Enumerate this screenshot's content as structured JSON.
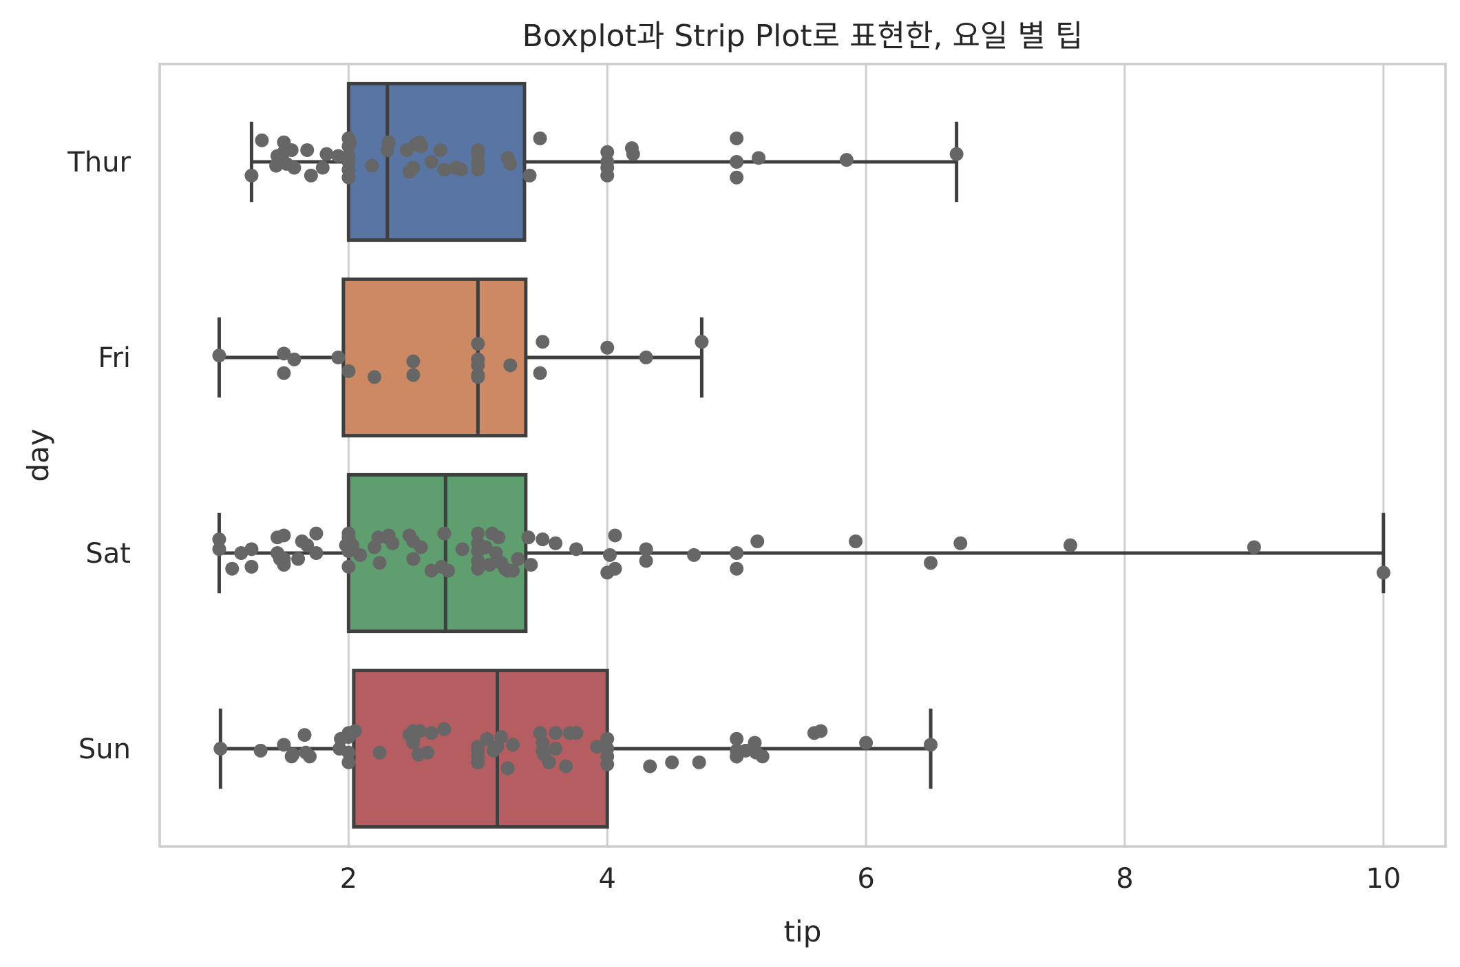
{
  "chart_data": {
    "type": "box",
    "title": "Boxplot과 Strip Plot로 표현한, 요일 별 팁",
    "xlabel": "tip",
    "ylabel": "day",
    "xlim": [
      0.54,
      10.48
    ],
    "xticks": [
      2,
      4,
      6,
      8,
      10
    ],
    "grid": "vertical",
    "categories": [
      "Thur",
      "Fri",
      "Sat",
      "Sun"
    ],
    "colors": {
      "Thur": "#5875a4",
      "Fri": "#cc8963",
      "Sat": "#5f9e6e",
      "Sun": "#b55d60",
      "points": "#666666",
      "lines": "#3f3f3f"
    },
    "boxes": [
      {
        "day": "Thur",
        "whisker_low": 1.25,
        "q1": 2.0,
        "median": 2.3,
        "q3": 3.36,
        "whisker_high": 6.7
      },
      {
        "day": "Fri",
        "whisker_low": 1.0,
        "q1": 1.96,
        "median": 3.0,
        "q3": 3.37,
        "whisker_high": 4.73
      },
      {
        "day": "Sat",
        "whisker_low": 1.0,
        "q1": 2.0,
        "median": 2.75,
        "q3": 3.37,
        "whisker_high": 10.0
      },
      {
        "day": "Sun",
        "whisker_low": 1.01,
        "q1": 2.04,
        "median": 3.15,
        "q3": 4.0,
        "whisker_high": 6.5
      }
    ],
    "points": {
      "Thur": [
        [
          1.25,
          0.07
        ],
        [
          1.33,
          -0.11
        ],
        [
          1.44,
          0.02
        ],
        [
          1.45,
          -0.03
        ],
        [
          1.5,
          -0.1
        ],
        [
          1.5,
          -0.05
        ],
        [
          1.52,
          0.01
        ],
        [
          1.56,
          -0.06
        ],
        [
          1.58,
          0.03
        ],
        [
          1.68,
          -0.06
        ],
        [
          1.71,
          0.07
        ],
        [
          1.8,
          0.03
        ],
        [
          1.83,
          -0.04
        ],
        [
          1.92,
          -0.03
        ],
        [
          2.0,
          -0.12
        ],
        [
          2.0,
          -0.08
        ],
        [
          2.0,
          -0.03
        ],
        [
          2.0,
          0.0
        ],
        [
          2.0,
          0.04
        ],
        [
          2.0,
          0.08
        ],
        [
          2.01,
          -0.1
        ],
        [
          2.18,
          0.02
        ],
        [
          2.31,
          -0.1
        ],
        [
          2.3,
          -0.06
        ],
        [
          2.45,
          -0.06
        ],
        [
          2.47,
          0.05
        ],
        [
          2.5,
          0.03
        ],
        [
          2.52,
          -0.09
        ],
        [
          2.55,
          -0.1
        ],
        [
          2.56,
          -0.08
        ],
        [
          2.64,
          0.0
        ],
        [
          2.71,
          -0.06
        ],
        [
          2.74,
          0.04
        ],
        [
          2.83,
          0.03
        ],
        [
          2.87,
          0.04
        ],
        [
          3.0,
          -0.06
        ],
        [
          3.0,
          -0.04
        ],
        [
          3.0,
          0.0
        ],
        [
          3.0,
          0.01
        ],
        [
          3.0,
          0.04
        ],
        [
          3.23,
          -0.02
        ],
        [
          3.25,
          0.01
        ],
        [
          3.4,
          0.07
        ],
        [
          3.48,
          -0.12
        ],
        [
          4.0,
          -0.05
        ],
        [
          4.0,
          0.0
        ],
        [
          4.0,
          0.03
        ],
        [
          4.0,
          0.07
        ],
        [
          4.19,
          -0.07
        ],
        [
          4.2,
          -0.04
        ],
        [
          5.0,
          -0.12
        ],
        [
          5.0,
          0.0
        ],
        [
          5.0,
          0.08
        ],
        [
          5.17,
          -0.02
        ],
        [
          5.85,
          -0.01
        ],
        [
          6.7,
          -0.04
        ]
      ],
      "Fri": [
        [
          1.0,
          -0.01
        ],
        [
          1.5,
          -0.02
        ],
        [
          1.5,
          0.08
        ],
        [
          1.58,
          0.01
        ],
        [
          1.92,
          0.0
        ],
        [
          2.0,
          0.07
        ],
        [
          2.2,
          0.1
        ],
        [
          2.5,
          0.02
        ],
        [
          2.5,
          0.09
        ],
        [
          3.0,
          -0.07
        ],
        [
          3.0,
          0.01
        ],
        [
          3.0,
          0.04
        ],
        [
          3.0,
          0.09
        ],
        [
          3.0,
          0.1
        ],
        [
          3.25,
          0.04
        ],
        [
          3.48,
          0.08
        ],
        [
          3.5,
          -0.08
        ],
        [
          4.0,
          -0.05
        ],
        [
          4.3,
          0.0
        ],
        [
          4.73,
          -0.08
        ]
      ],
      "Sat": [
        [
          1.0,
          -0.07
        ],
        [
          1.0,
          -0.02
        ],
        [
          1.1,
          0.08
        ],
        [
          1.17,
          0.0
        ],
        [
          1.25,
          -0.02
        ],
        [
          1.25,
          0.07
        ],
        [
          1.45,
          0.0
        ],
        [
          1.45,
          -0.08
        ],
        [
          1.47,
          0.03
        ],
        [
          1.5,
          -0.09
        ],
        [
          1.5,
          0.03
        ],
        [
          1.5,
          0.05
        ],
        [
          1.5,
          0.06
        ],
        [
          1.61,
          0.03
        ],
        [
          1.64,
          -0.06
        ],
        [
          1.68,
          -0.04
        ],
        [
          1.75,
          -0.1
        ],
        [
          1.75,
          0.0
        ],
        [
          1.98,
          -0.04
        ],
        [
          2.0,
          -0.1
        ],
        [
          2.0,
          -0.08
        ],
        [
          2.0,
          -0.05
        ],
        [
          2.0,
          -0.01
        ],
        [
          2.0,
          0.07
        ],
        [
          2.03,
          -0.04
        ],
        [
          2.09,
          0.01
        ],
        [
          2.2,
          -0.03
        ],
        [
          2.23,
          -0.08
        ],
        [
          2.24,
          0.05
        ],
        [
          2.3,
          -0.08
        ],
        [
          2.31,
          -0.09
        ],
        [
          2.34,
          -0.05
        ],
        [
          2.47,
          -0.09
        ],
        [
          2.5,
          -0.06
        ],
        [
          2.5,
          0.03
        ],
        [
          2.56,
          -0.03
        ],
        [
          2.64,
          0.09
        ],
        [
          2.72,
          0.07
        ],
        [
          2.74,
          -0.1
        ],
        [
          2.77,
          0.09
        ],
        [
          2.88,
          -0.02
        ],
        [
          3.0,
          -0.1
        ],
        [
          3.0,
          -0.05
        ],
        [
          3.0,
          -0.01
        ],
        [
          3.0,
          0.04
        ],
        [
          3.0,
          0.08
        ],
        [
          3.06,
          -0.03
        ],
        [
          3.09,
          0.06
        ],
        [
          3.11,
          -0.1
        ],
        [
          3.14,
          0.0
        ],
        [
          3.16,
          -0.08
        ],
        [
          3.18,
          0.05
        ],
        [
          3.21,
          0.08
        ],
        [
          3.23,
          0.09
        ],
        [
          3.27,
          0.09
        ],
        [
          3.31,
          0.03
        ],
        [
          3.39,
          -0.08
        ],
        [
          3.41,
          0.06
        ],
        [
          3.5,
          -0.07
        ],
        [
          3.6,
          -0.05
        ],
        [
          3.76,
          -0.02
        ],
        [
          4.0,
          0.1
        ],
        [
          4.02,
          0.01
        ],
        [
          4.06,
          -0.09
        ],
        [
          4.06,
          0.08
        ],
        [
          4.3,
          -0.02
        ],
        [
          4.3,
          0.04
        ],
        [
          4.67,
          0.01
        ],
        [
          5.0,
          0.0
        ],
        [
          5.0,
          0.08
        ],
        [
          5.16,
          -0.06
        ],
        [
          5.92,
          -0.06
        ],
        [
          6.5,
          0.05
        ],
        [
          6.73,
          -0.05
        ],
        [
          7.58,
          -0.04
        ],
        [
          9.0,
          -0.03
        ],
        [
          10.0,
          0.1
        ]
      ],
      "Sun": [
        [
          1.01,
          0.0
        ],
        [
          1.32,
          0.01
        ],
        [
          1.5,
          -0.02
        ],
        [
          1.56,
          0.04
        ],
        [
          1.57,
          0.03
        ],
        [
          1.66,
          -0.07
        ],
        [
          1.67,
          0.02
        ],
        [
          1.7,
          0.04
        ],
        [
          1.93,
          0.0
        ],
        [
          1.94,
          -0.05
        ],
        [
          2.0,
          -0.08
        ],
        [
          2.0,
          -0.06
        ],
        [
          2.0,
          0.02
        ],
        [
          2.0,
          0.07
        ],
        [
          2.05,
          -0.09
        ],
        [
          2.24,
          0.02
        ],
        [
          2.47,
          -0.07
        ],
        [
          2.5,
          -0.09
        ],
        [
          2.5,
          -0.05
        ],
        [
          2.5,
          -0.03
        ],
        [
          2.54,
          0.03
        ],
        [
          2.55,
          -0.09
        ],
        [
          2.61,
          0.02
        ],
        [
          2.64,
          -0.08
        ],
        [
          2.74,
          -0.1
        ],
        [
          3.0,
          -0.01
        ],
        [
          3.0,
          0.01
        ],
        [
          3.0,
          0.04
        ],
        [
          3.0,
          0.07
        ],
        [
          3.07,
          -0.05
        ],
        [
          3.12,
          0.01
        ],
        [
          3.15,
          -0.01
        ],
        [
          3.18,
          -0.06
        ],
        [
          3.23,
          0.1
        ],
        [
          3.27,
          -0.02
        ],
        [
          3.48,
          -0.08
        ],
        [
          3.5,
          -0.03
        ],
        [
          3.5,
          0.01
        ],
        [
          3.51,
          0.03
        ],
        [
          3.55,
          0.07
        ],
        [
          3.6,
          -0.08
        ],
        [
          3.6,
          0.0
        ],
        [
          3.68,
          0.09
        ],
        [
          3.71,
          -0.08
        ],
        [
          3.76,
          -0.08
        ],
        [
          3.92,
          -0.01
        ],
        [
          4.0,
          -0.05
        ],
        [
          4.0,
          0.0
        ],
        [
          4.0,
          0.04
        ],
        [
          4.0,
          0.08
        ],
        [
          4.33,
          0.09
        ],
        [
          4.5,
          0.07
        ],
        [
          4.71,
          0.07
        ],
        [
          5.0,
          -0.05
        ],
        [
          5.0,
          0.01
        ],
        [
          5.0,
          0.04
        ],
        [
          5.0,
          0.04
        ],
        [
          5.07,
          0.01
        ],
        [
          5.14,
          -0.03
        ],
        [
          5.15,
          0.02
        ],
        [
          5.2,
          0.04
        ],
        [
          5.6,
          -0.08
        ],
        [
          5.65,
          -0.09
        ],
        [
          6.0,
          -0.03
        ],
        [
          6.5,
          -0.02
        ]
      ]
    }
  }
}
